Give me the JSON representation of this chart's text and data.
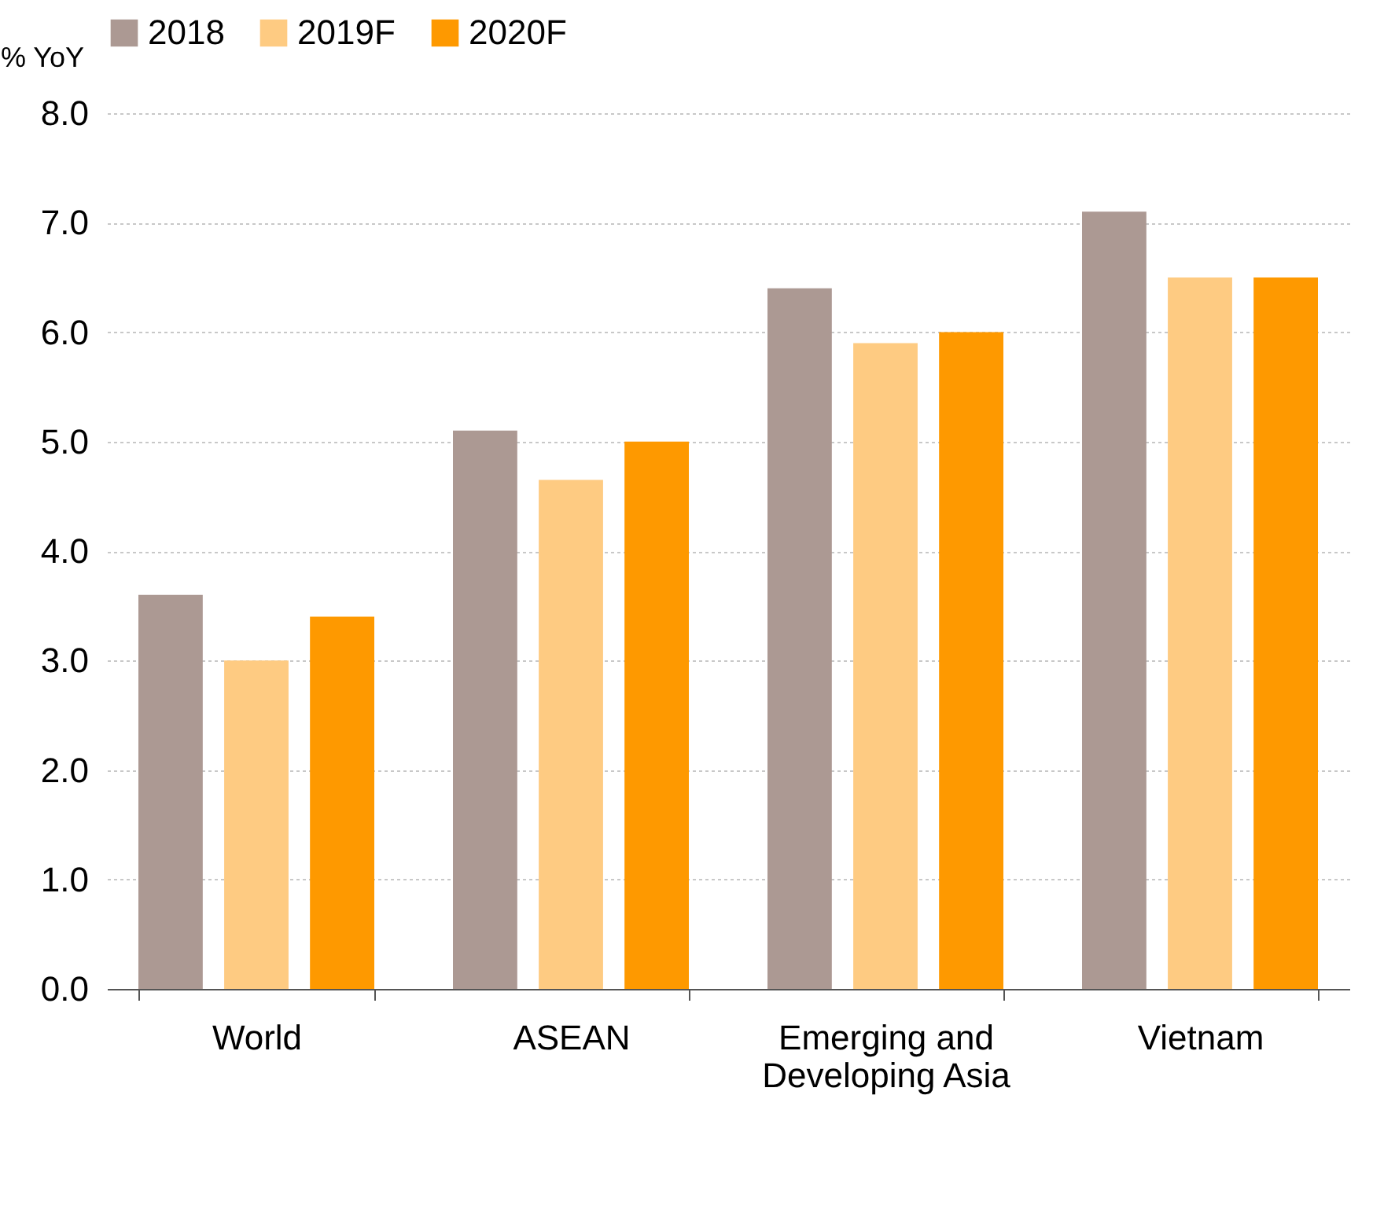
{
  "chart_data": {
    "type": "bar",
    "ylabel": "% YoY",
    "categories": [
      "World",
      "ASEAN",
      "Emerging and Developing Asia",
      "Vietnam"
    ],
    "series": [
      {
        "name": "2018",
        "color": "#ac9993",
        "values": [
          3.6,
          5.1,
          6.4,
          7.1
        ]
      },
      {
        "name": "2019F",
        "color": "#fecb82",
        "values": [
          3.0,
          4.65,
          5.9,
          6.5
        ]
      },
      {
        "name": "2020F",
        "color": "#fe9900",
        "values": [
          3.4,
          5.0,
          6.0,
          6.5
        ]
      }
    ],
    "ylim": [
      0,
      8
    ],
    "yticks": [
      {
        "value": 0,
        "label": "0.0"
      },
      {
        "value": 1,
        "label": "1.0"
      },
      {
        "value": 2,
        "label": "2.0"
      },
      {
        "value": 3,
        "label": "3.0"
      },
      {
        "value": 4,
        "label": "4.0"
      },
      {
        "value": 5,
        "label": "5.0"
      },
      {
        "value": 6,
        "label": "6.0"
      },
      {
        "value": 7,
        "label": "7.0"
      },
      {
        "value": 8,
        "label": "8.0"
      }
    ],
    "grid": "y",
    "legend": "top"
  }
}
